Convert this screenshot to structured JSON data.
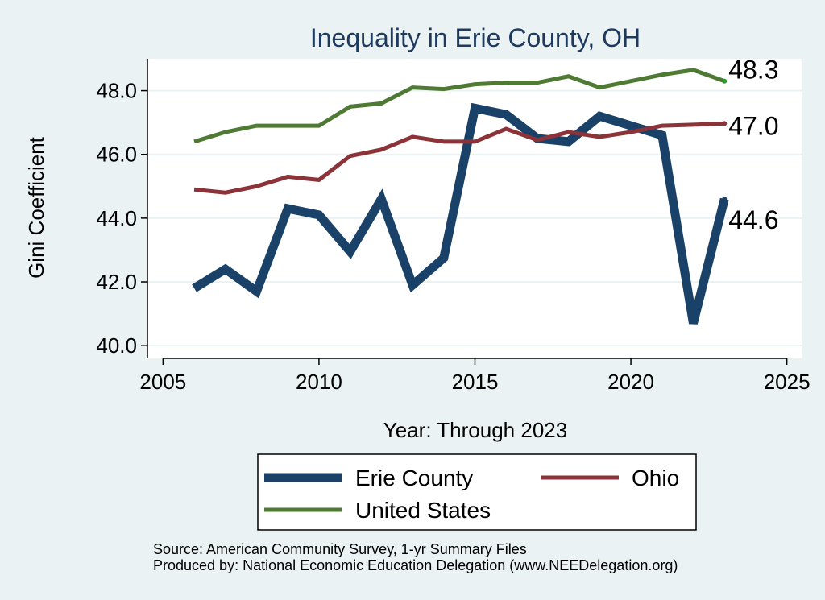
{
  "chart_data": {
    "type": "line",
    "title": "Inequality in Erie County, OH",
    "xlabel": "Year: Through 2023",
    "ylabel": "Gini Coefficient",
    "xlim": [
      2004.5,
      2025.5
    ],
    "ylim": [
      39.6,
      49.0
    ],
    "x_ticks": [
      2005,
      2010,
      2015,
      2020,
      2025
    ],
    "y_ticks": [
      40.0,
      42.0,
      44.0,
      46.0,
      48.0
    ],
    "grid": true,
    "x": [
      2006,
      2007,
      2008,
      2009,
      2010,
      2011,
      2012,
      2013,
      2014,
      2015,
      2016,
      2017,
      2018,
      2019,
      2020,
      2021,
      2022,
      2023
    ],
    "series": [
      {
        "name": "Erie County",
        "color": "#1a4269",
        "values": [
          41.8,
          42.4,
          41.7,
          44.3,
          44.1,
          42.95,
          44.6,
          41.9,
          42.75,
          47.45,
          47.25,
          46.5,
          46.4,
          47.2,
          46.9,
          46.6,
          40.7,
          44.6
        ],
        "end_label": "44.6"
      },
      {
        "name": "Ohio",
        "color": "#8b3338",
        "values": [
          44.9,
          44.8,
          45.0,
          45.3,
          45.2,
          45.95,
          46.15,
          46.55,
          46.4,
          46.4,
          46.8,
          46.45,
          46.7,
          46.55,
          46.7,
          46.9,
          46.93,
          46.97
        ],
        "end_label": "47.0"
      },
      {
        "name": "United States",
        "color": "#4e7a33",
        "values": [
          46.4,
          46.7,
          46.9,
          46.9,
          46.9,
          47.5,
          47.6,
          48.1,
          48.05,
          48.2,
          48.25,
          48.25,
          48.45,
          48.1,
          48.3,
          48.5,
          48.65,
          48.3
        ],
        "end_label": "48.3"
      }
    ],
    "legend": {
      "placement": "bottom",
      "entries": [
        "Erie County",
        "Ohio",
        "United States"
      ]
    }
  },
  "source_line_1": "Source: American Community Survey, 1-yr Summary Files",
  "source_line_2": "Produced by: National Economic Education Delegation (www.NEEDelegation.org)"
}
